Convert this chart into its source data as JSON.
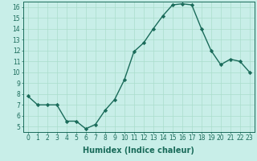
{
  "x": [
    0,
    1,
    2,
    3,
    4,
    5,
    6,
    7,
    8,
    9,
    10,
    11,
    12,
    13,
    14,
    15,
    16,
    17,
    18,
    19,
    20,
    21,
    22,
    23
  ],
  "y": [
    7.8,
    7.0,
    7.0,
    7.0,
    5.5,
    5.5,
    4.8,
    5.2,
    6.5,
    7.5,
    9.3,
    11.9,
    12.7,
    14.0,
    15.2,
    16.2,
    16.3,
    16.2,
    14.0,
    12.0,
    10.7,
    11.2,
    11.0,
    10.0
  ],
  "line_color": "#1a6b5a",
  "marker": "D",
  "marker_size": 2.2,
  "bg_color": "#c8eee8",
  "grid_color": "#aaddcc",
  "xlabel": "Humidex (Indice chaleur)",
  "xlim": [
    -0.5,
    23.5
  ],
  "ylim": [
    4.5,
    16.5
  ],
  "yticks": [
    5,
    6,
    7,
    8,
    9,
    10,
    11,
    12,
    13,
    14,
    15,
    16
  ],
  "xticks": [
    0,
    1,
    2,
    3,
    4,
    5,
    6,
    7,
    8,
    9,
    10,
    11,
    12,
    13,
    14,
    15,
    16,
    17,
    18,
    19,
    20,
    21,
    22,
    23
  ],
  "tick_label_fontsize": 5.5,
  "xlabel_fontsize": 7.0,
  "line_width": 1.0
}
